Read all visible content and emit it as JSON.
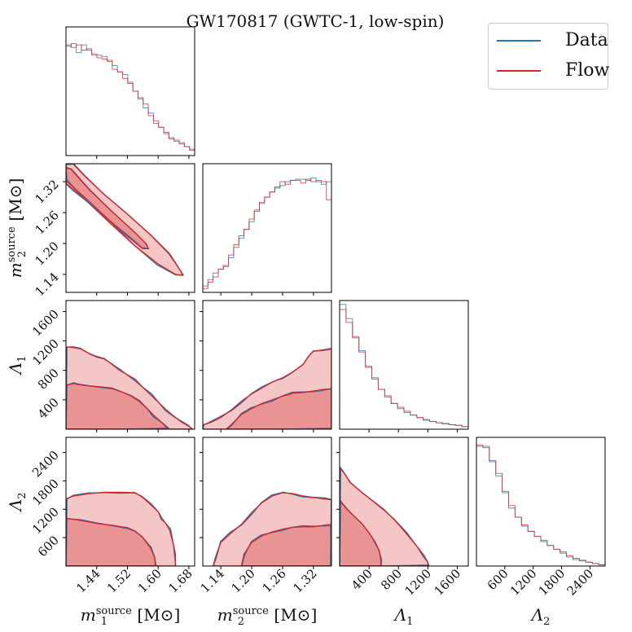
{
  "title": "GW170817 (GWTC-1, low-spin)",
  "legend": [
    {
      "label": "Data",
      "color": "#1f77b4"
    },
    {
      "label": "Flow",
      "color": "#d62728"
    }
  ],
  "chart_data": {
    "type": "corner",
    "title": "GW170817 (GWTC-1, low-spin)",
    "legend_placement": "top-right",
    "parameters": [
      {
        "name": "m1_source",
        "label_main": "m",
        "label_sub": "1",
        "label_sup": "source",
        "label_unit": " [M⊙]",
        "range": [
          1.36,
          1.695
        ],
        "ticks": [
          1.44,
          1.52,
          1.6,
          1.68
        ],
        "tick_labels": [
          "1.44",
          "1.52",
          "1.60",
          "1.68"
        ]
      },
      {
        "name": "m2_source",
        "label_main": "m",
        "label_sub": "2",
        "label_sup": "source",
        "label_unit": " [M⊙]",
        "range": [
          1.105,
          1.355
        ],
        "ticks": [
          1.14,
          1.2,
          1.26,
          1.32
        ],
        "tick_labels": [
          "1.14",
          "1.20",
          "1.26",
          "1.32"
        ]
      },
      {
        "name": "Lambda1",
        "label_main": "Λ",
        "label_sub": "1",
        "label_sup": "",
        "label_unit": "",
        "range": [
          0,
          1750
        ],
        "ticks": [
          400,
          800,
          1200,
          1600
        ],
        "tick_labels": [
          "400",
          "800",
          "1200",
          "1600"
        ]
      },
      {
        "name": "Lambda2",
        "label_main": "Λ",
        "label_sub": "2",
        "label_sup": "",
        "label_unit": "",
        "range": [
          0,
          2720
        ],
        "ticks": [
          600,
          1200,
          1800,
          2400
        ],
        "tick_labels": [
          "600",
          "1200",
          "1800",
          "2400"
        ]
      }
    ],
    "histograms": [
      {
        "param": 0,
        "data": [
          0.85,
          0.87,
          0.8,
          0.86,
          0.82,
          0.78,
          0.78,
          0.77,
          0.73,
          0.7,
          0.65,
          0.63,
          0.57,
          0.5,
          0.44,
          0.37,
          0.33,
          0.25,
          0.22,
          0.17,
          0.14,
          0.11,
          0.1,
          0.07,
          0.05
        ],
        "flow": [
          0.86,
          0.84,
          0.86,
          0.82,
          0.83,
          0.79,
          0.76,
          0.75,
          0.74,
          0.67,
          0.65,
          0.6,
          0.56,
          0.5,
          0.45,
          0.4,
          0.31,
          0.27,
          0.22,
          0.18,
          0.13,
          0.12,
          0.09,
          0.07,
          0.04
        ]
      },
      {
        "param": 1,
        "data": [
          0.05,
          0.1,
          0.15,
          0.18,
          0.2,
          0.27,
          0.35,
          0.42,
          0.49,
          0.55,
          0.63,
          0.69,
          0.74,
          0.78,
          0.81,
          0.83,
          0.86,
          0.87,
          0.88,
          0.88,
          0.87,
          0.89,
          0.86,
          0.84,
          0.86
        ],
        "flow": [
          0.03,
          0.08,
          0.12,
          0.18,
          0.21,
          0.29,
          0.37,
          0.44,
          0.49,
          0.57,
          0.64,
          0.7,
          0.74,
          0.78,
          0.82,
          0.86,
          0.84,
          0.87,
          0.87,
          0.85,
          0.88,
          0.86,
          0.87,
          0.86,
          0.72
        ]
      },
      {
        "param": 2,
        "data": [
          0.97,
          0.86,
          0.72,
          0.61,
          0.49,
          0.4,
          0.31,
          0.25,
          0.2,
          0.16,
          0.13,
          0.11,
          0.09,
          0.07,
          0.06,
          0.05,
          0.04,
          0.035,
          0.03,
          0.02
        ],
        "flow": [
          0.93,
          0.83,
          0.71,
          0.6,
          0.48,
          0.39,
          0.31,
          0.26,
          0.2,
          0.17,
          0.14,
          0.11,
          0.09,
          0.075,
          0.06,
          0.05,
          0.045,
          0.035,
          0.03,
          0.02
        ]
      },
      {
        "param": 3,
        "data": [
          0.93,
          0.93,
          0.81,
          0.7,
          0.57,
          0.45,
          0.38,
          0.31,
          0.27,
          0.23,
          0.19,
          0.16,
          0.13,
          0.1,
          0.07,
          0.05,
          0.04,
          0.03,
          0.02,
          0.01
        ],
        "flow": [
          0.94,
          0.92,
          0.82,
          0.72,
          0.58,
          0.47,
          0.38,
          0.32,
          0.27,
          0.23,
          0.2,
          0.16,
          0.13,
          0.11,
          0.08,
          0.06,
          0.045,
          0.03,
          0.02,
          0.01
        ]
      }
    ],
    "contour_levels": [
      "inner (darker fill)",
      "outer (lighter fill)"
    ],
    "contours": [
      {
        "x": 0,
        "y": 1,
        "outer": [
          [
            1.36,
            1.355
          ],
          [
            1.378,
            1.355
          ],
          [
            1.41,
            1.33
          ],
          [
            1.46,
            1.295
          ],
          [
            1.52,
            1.257
          ],
          [
            1.58,
            1.217
          ],
          [
            1.63,
            1.18
          ],
          [
            1.66,
            1.145
          ],
          [
            1.663,
            1.138
          ],
          [
            1.645,
            1.14
          ],
          [
            1.6,
            1.16
          ],
          [
            1.54,
            1.195
          ],
          [
            1.48,
            1.236
          ],
          [
            1.42,
            1.278
          ],
          [
            1.38,
            1.305
          ],
          [
            1.36,
            1.317
          ]
        ],
        "inner": [
          [
            1.36,
            1.348
          ],
          [
            1.372,
            1.345
          ],
          [
            1.42,
            1.305
          ],
          [
            1.48,
            1.262
          ],
          [
            1.54,
            1.221
          ],
          [
            1.568,
            1.2
          ],
          [
            1.575,
            1.19
          ],
          [
            1.56,
            1.19
          ],
          [
            1.52,
            1.214
          ],
          [
            1.47,
            1.247
          ],
          [
            1.42,
            1.282
          ],
          [
            1.38,
            1.309
          ],
          [
            1.36,
            1.322
          ]
        ]
      },
      {
        "x": 0,
        "y": 2,
        "outer": [
          [
            1.36,
            0
          ],
          [
            1.36,
            1120
          ],
          [
            1.38,
            1110
          ],
          [
            1.4,
            1090
          ],
          [
            1.42,
            1030
          ],
          [
            1.44,
            990
          ],
          [
            1.46,
            960
          ],
          [
            1.48,
            880
          ],
          [
            1.5,
            800
          ],
          [
            1.52,
            740
          ],
          [
            1.54,
            680
          ],
          [
            1.56,
            570
          ],
          [
            1.58,
            470
          ],
          [
            1.6,
            370
          ],
          [
            1.62,
            270
          ],
          [
            1.64,
            180
          ],
          [
            1.66,
            100
          ],
          [
            1.68,
            40
          ],
          [
            1.69,
            0
          ]
        ],
        "inner": [
          [
            1.36,
            0
          ],
          [
            1.36,
            600
          ],
          [
            1.38,
            620
          ],
          [
            1.4,
            600
          ],
          [
            1.44,
            580
          ],
          [
            1.48,
            560
          ],
          [
            1.5,
            520
          ],
          [
            1.53,
            450
          ],
          [
            1.55,
            380
          ],
          [
            1.57,
            290
          ],
          [
            1.59,
            180
          ],
          [
            1.61,
            90
          ],
          [
            1.625,
            0
          ]
        ]
      },
      {
        "x": 1,
        "y": 2,
        "outer": [
          [
            1.105,
            0
          ],
          [
            1.105,
            60
          ],
          [
            1.12,
            90
          ],
          [
            1.14,
            160
          ],
          [
            1.16,
            260
          ],
          [
            1.18,
            380
          ],
          [
            1.2,
            480
          ],
          [
            1.22,
            560
          ],
          [
            1.24,
            640
          ],
          [
            1.26,
            700
          ],
          [
            1.28,
            780
          ],
          [
            1.3,
            880
          ],
          [
            1.31,
            990
          ],
          [
            1.32,
            1060
          ],
          [
            1.34,
            1080
          ],
          [
            1.355,
            1100
          ],
          [
            1.355,
            0
          ]
        ],
        "inner": [
          [
            1.15,
            0
          ],
          [
            1.16,
            60
          ],
          [
            1.18,
            200
          ],
          [
            1.2,
            280
          ],
          [
            1.22,
            350
          ],
          [
            1.24,
            400
          ],
          [
            1.26,
            450
          ],
          [
            1.28,
            490
          ],
          [
            1.3,
            500
          ],
          [
            1.32,
            520
          ],
          [
            1.34,
            540
          ],
          [
            1.355,
            550
          ],
          [
            1.355,
            0
          ]
        ]
      },
      {
        "x": 0,
        "y": 3,
        "outer": [
          [
            1.36,
            0
          ],
          [
            1.36,
            1420
          ],
          [
            1.38,
            1480
          ],
          [
            1.42,
            1530
          ],
          [
            1.46,
            1560
          ],
          [
            1.5,
            1560
          ],
          [
            1.54,
            1550
          ],
          [
            1.56,
            1450
          ],
          [
            1.58,
            1300
          ],
          [
            1.6,
            1150
          ],
          [
            1.61,
            1010
          ],
          [
            1.62,
            900
          ],
          [
            1.63,
            760
          ],
          [
            1.64,
            450
          ],
          [
            1.645,
            250
          ],
          [
            1.645,
            0
          ]
        ],
        "inner": [
          [
            1.36,
            0
          ],
          [
            1.36,
            1010
          ],
          [
            1.4,
            960
          ],
          [
            1.44,
            900
          ],
          [
            1.48,
            860
          ],
          [
            1.52,
            810
          ],
          [
            1.54,
            740
          ],
          [
            1.56,
            600
          ],
          [
            1.58,
            380
          ],
          [
            1.59,
            200
          ],
          [
            1.595,
            0
          ]
        ]
      },
      {
        "x": 1,
        "y": 3,
        "outer": [
          [
            1.125,
            0
          ],
          [
            1.13,
            200
          ],
          [
            1.14,
            500
          ],
          [
            1.16,
            700
          ],
          [
            1.18,
            880
          ],
          [
            1.2,
            1130
          ],
          [
            1.22,
            1340
          ],
          [
            1.24,
            1480
          ],
          [
            1.26,
            1550
          ],
          [
            1.28,
            1530
          ],
          [
            1.3,
            1480
          ],
          [
            1.32,
            1450
          ],
          [
            1.34,
            1420
          ],
          [
            1.355,
            1400
          ],
          [
            1.355,
            0
          ]
        ],
        "inner": [
          [
            1.18,
            0
          ],
          [
            1.185,
            250
          ],
          [
            1.2,
            500
          ],
          [
            1.22,
            640
          ],
          [
            1.24,
            720
          ],
          [
            1.26,
            780
          ],
          [
            1.28,
            820
          ],
          [
            1.3,
            830
          ],
          [
            1.32,
            830
          ],
          [
            1.34,
            860
          ],
          [
            1.355,
            880
          ],
          [
            1.355,
            0
          ]
        ]
      },
      {
        "x": 2,
        "y": 3,
        "outer": [
          [
            0,
            0
          ],
          [
            0,
            2080
          ],
          [
            50,
            1990
          ],
          [
            150,
            1760
          ],
          [
            300,
            1560
          ],
          [
            450,
            1380
          ],
          [
            600,
            1200
          ],
          [
            750,
            970
          ],
          [
            900,
            700
          ],
          [
            1050,
            420
          ],
          [
            1150,
            220
          ],
          [
            1200,
            80
          ],
          [
            1200,
            0
          ]
        ],
        "inner": [
          [
            0,
            0
          ],
          [
            0,
            1380
          ],
          [
            100,
            1200
          ],
          [
            200,
            1050
          ],
          [
            300,
            900
          ],
          [
            400,
            700
          ],
          [
            480,
            520
          ],
          [
            540,
            320
          ],
          [
            560,
            120
          ],
          [
            560,
            0
          ]
        ]
      }
    ]
  }
}
